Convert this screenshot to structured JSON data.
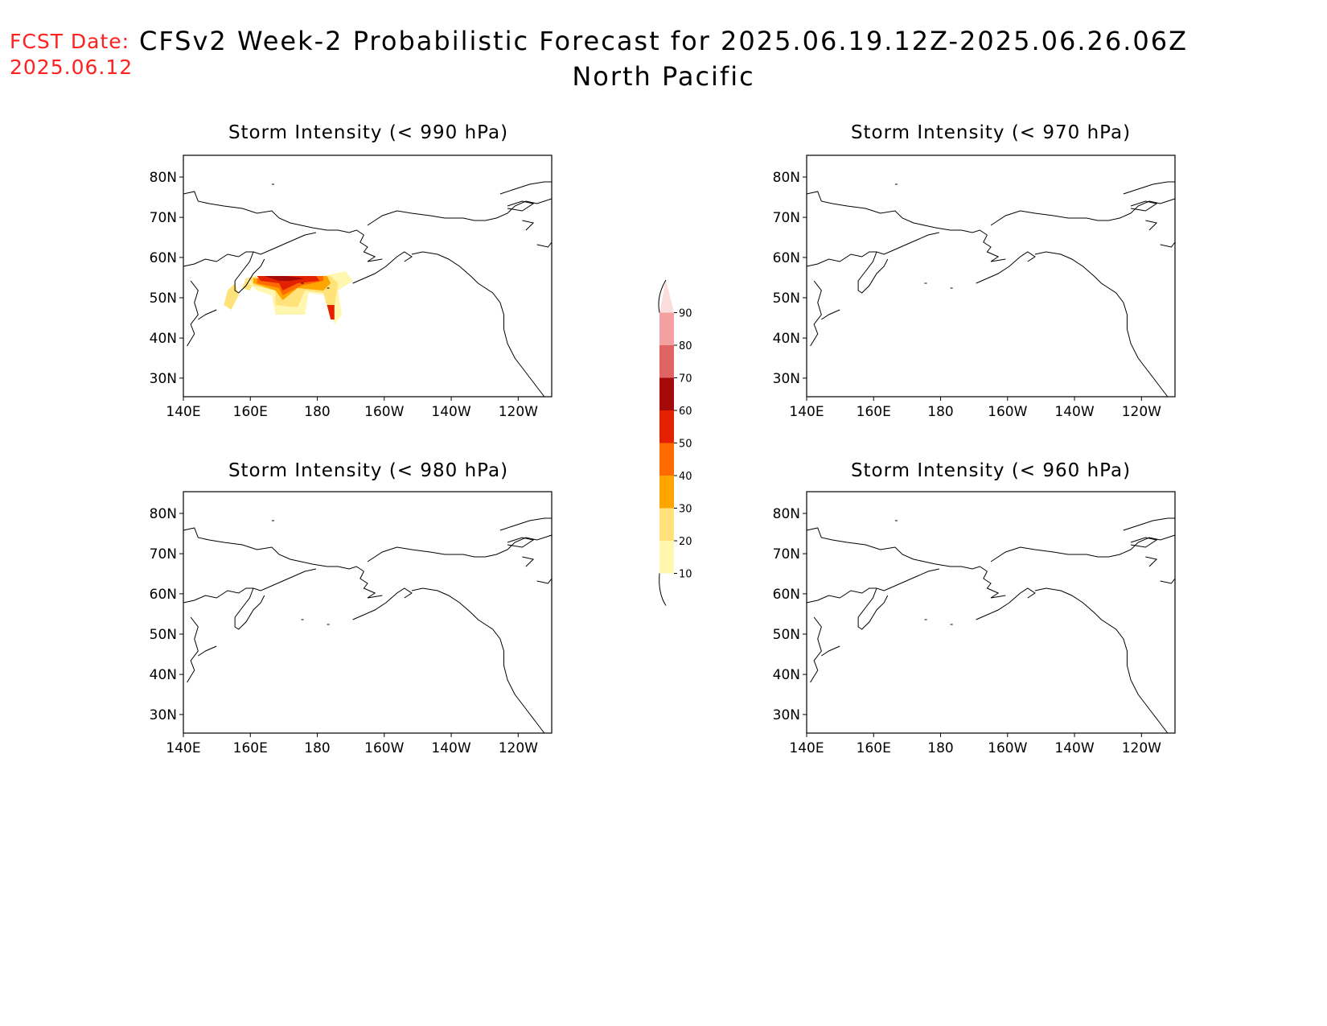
{
  "header": {
    "fcst_label": "FCST Date:",
    "fcst_date": "2025.06.12",
    "title": "CFSv2 Week-2 Probabilistic Forecast for 2025.06.19.12Z-2025.06.26.06Z",
    "subtitle": "North Pacific"
  },
  "colors": {
    "fcst_text": "#ff2020",
    "scale": [
      "#fff7b0",
      "#ffe27a",
      "#ffa500",
      "#ff6a00",
      "#e32000",
      "#a50a0a",
      "#e06464",
      "#f5a0a0",
      "#fddcdc"
    ]
  },
  "axes": {
    "lon_labels": [
      "140E",
      "160E",
      "180",
      "160W",
      "140W",
      "120W"
    ],
    "lat_labels": [
      "80N",
      "70N",
      "60N",
      "50N",
      "40N",
      "30N"
    ]
  },
  "colorbar": {
    "labels": [
      "10",
      "20",
      "30",
      "40",
      "50",
      "60",
      "70",
      "80",
      "90"
    ]
  },
  "panels": [
    {
      "id": "p990",
      "title": "Storm Intensity (< 990 hPa)",
      "has_data": true
    },
    {
      "id": "p970",
      "title": "Storm Intensity (< 970 hPa)",
      "has_data": false
    },
    {
      "id": "p980",
      "title": "Storm Intensity (< 980 hPa)",
      "has_data": false
    },
    {
      "id": "p960",
      "title": "Storm Intensity (< 960 hPa)",
      "has_data": false
    }
  ]
}
